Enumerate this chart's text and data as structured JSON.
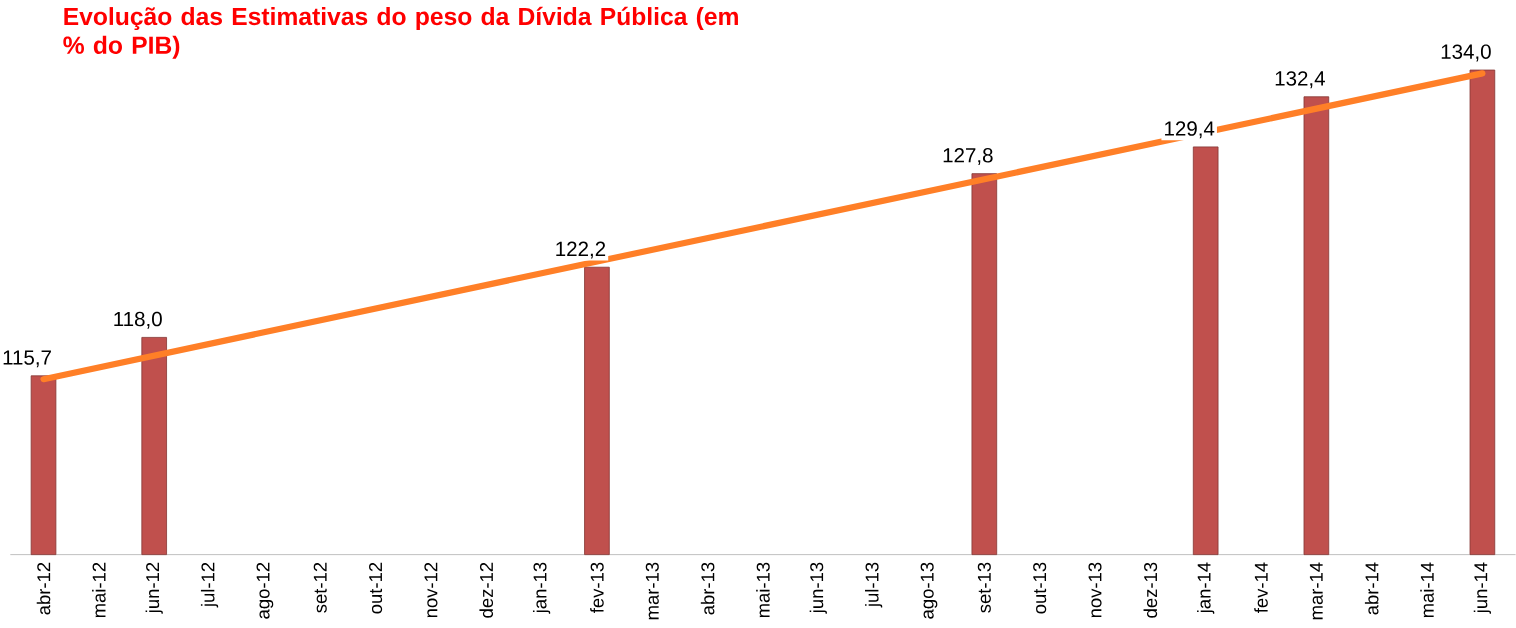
{
  "chart_data": {
    "type": "bar",
    "title": "Evolução das Estimativas do peso da Dívida Pública (em % do PIB)",
    "categories": [
      "abr-12",
      "mai-12",
      "jun-12",
      "jul-12",
      "ago-12",
      "set-12",
      "out-12",
      "nov-12",
      "dez-12",
      "jan-13",
      "fev-13",
      "mar-13",
      "abr-13",
      "mai-13",
      "jun-13",
      "jul-13",
      "ago-13",
      "set-13",
      "out-13",
      "nov-13",
      "dez-13",
      "jan-14",
      "fev-14",
      "mar-14",
      "abr-14",
      "mai-14",
      "jun-14"
    ],
    "series": [
      {
        "color": "#c0504d",
        "values": [
          115.7,
          null,
          118.0,
          null,
          null,
          null,
          null,
          null,
          null,
          null,
          122.2,
          null,
          null,
          null,
          null,
          null,
          null,
          127.8,
          null,
          null,
          null,
          129.4,
          null,
          132.4,
          null,
          null,
          134.0
        ],
        "value_labels": [
          "115,7",
          null,
          "118,0",
          null,
          null,
          null,
          null,
          null,
          null,
          null,
          "122,2",
          null,
          null,
          null,
          null,
          null,
          null,
          "127,8",
          null,
          null,
          null,
          "129,4",
          null,
          "132,4",
          null,
          null,
          "134,0"
        ]
      },
      {
        "type": "line",
        "color": "#ff7f27",
        "x": [
          "abr-12",
          "jun-14"
        ],
        "values": [
          115.5,
          133.8
        ]
      }
    ],
    "ylim": [
      105,
      134
    ],
    "tick_labels": "x",
    "grid": false
  }
}
